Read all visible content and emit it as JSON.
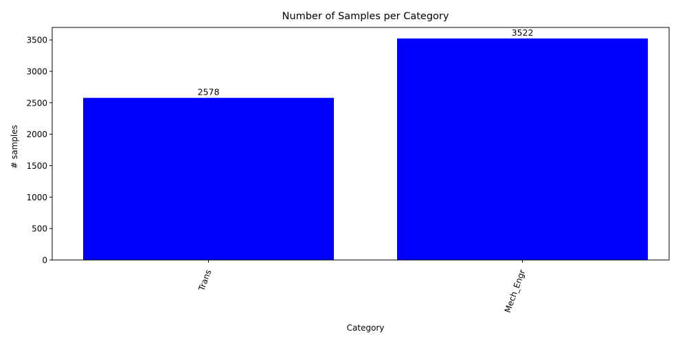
{
  "chart_data": {
    "type": "bar",
    "title": "Number of Samples per Category",
    "xlabel": "Category",
    "ylabel": "# samples",
    "categories": [
      "Trans",
      "Mech_Engr"
    ],
    "values": [
      2578,
      3522
    ],
    "data_labels": [
      "2578",
      "3522"
    ],
    "ylim": [
      0,
      3698
    ],
    "yticks": [
      0,
      500,
      1000,
      1500,
      2000,
      2500,
      3000,
      3500
    ],
    "ytick_labels": [
      "0",
      "500",
      "1000",
      "1500",
      "2000",
      "2500",
      "3000",
      "3500"
    ],
    "xtick_rotation_deg": 70,
    "bar_color": "#0000ff",
    "grid": false,
    "legend": "none"
  }
}
